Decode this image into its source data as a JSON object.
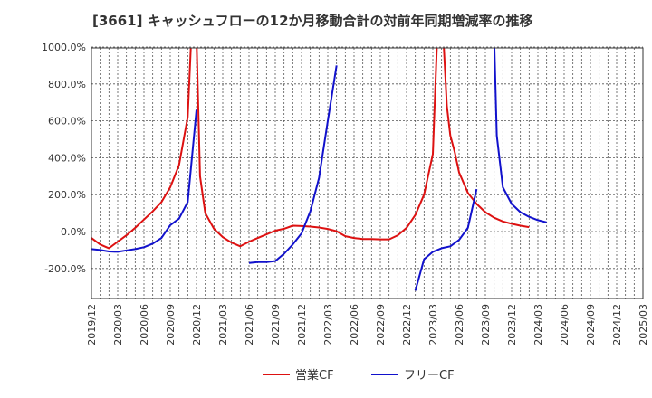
{
  "chart_data": {
    "type": "line",
    "title": "[3661]  キャッシュフローの12か月移動合計の対前年同期増減率の推移",
    "xlabel": "",
    "ylabel": "",
    "ylim": [
      -370,
      1000
    ],
    "y_ticks": [
      "1000.0%",
      "800.0%",
      "600.0%",
      "400.0%",
      "200.0%",
      "0.0%",
      "-200.0%"
    ],
    "y_tick_values": [
      1000,
      800,
      600,
      400,
      200,
      0,
      -200
    ],
    "x_tick_labels": [
      "2019/12",
      "2020/03",
      "2020/06",
      "2020/09",
      "2020/12",
      "2021/03",
      "2021/06",
      "2021/09",
      "2021/12",
      "2022/03",
      "2022/06",
      "2022/09",
      "2022/12",
      "2023/03",
      "2023/06",
      "2023/09",
      "2023/12",
      "2024/03",
      "2024/06",
      "2024/09",
      "2024/12",
      "2025/03"
    ],
    "grid": true,
    "legend_position": "bottom",
    "series": [
      {
        "name": "営業CF",
        "color": "#dd1111",
        "points": [
          [
            0,
            -35
          ],
          [
            1,
            -70
          ],
          [
            2,
            -90
          ],
          [
            3,
            -55
          ],
          [
            4,
            -20
          ],
          [
            5,
            20
          ],
          [
            6,
            65
          ],
          [
            7,
            110
          ],
          [
            8,
            160
          ],
          [
            9,
            240
          ],
          [
            10,
            360
          ],
          [
            11,
            620
          ],
          [
            11.4,
            1050
          ],
          [
            12.0,
            1050
          ],
          [
            12.4,
            300
          ],
          [
            13,
            100
          ],
          [
            14,
            15
          ],
          [
            15,
            -30
          ],
          [
            16,
            -60
          ],
          [
            17,
            -80
          ],
          [
            18,
            -55
          ],
          [
            19,
            -35
          ],
          [
            20,
            -15
          ],
          [
            21,
            5
          ],
          [
            22,
            15
          ],
          [
            23,
            32
          ],
          [
            24,
            30
          ],
          [
            25,
            27
          ],
          [
            26,
            22
          ],
          [
            27,
            14
          ],
          [
            28,
            2
          ],
          [
            29,
            -25
          ],
          [
            30,
            -35
          ],
          [
            31,
            -40
          ],
          [
            32,
            -40
          ],
          [
            33,
            -42
          ],
          [
            34,
            -42
          ],
          [
            35,
            -20
          ],
          [
            36,
            20
          ],
          [
            37,
            90
          ],
          [
            38,
            200
          ],
          [
            39,
            420
          ],
          [
            39.5,
            1050
          ],
          [
            40.2,
            1050
          ],
          [
            40.6,
            680
          ],
          [
            41,
            520
          ],
          [
            41.5,
            430
          ],
          [
            42,
            320
          ],
          [
            43,
            210
          ],
          [
            44,
            150
          ],
          [
            45,
            105
          ],
          [
            46,
            75
          ],
          [
            47,
            55
          ],
          [
            48,
            42
          ],
          [
            49,
            32
          ],
          [
            50,
            24
          ]
        ]
      },
      {
        "name": "フリーCF",
        "color": "#1111cc",
        "segments": [
          [
            [
              0,
              -95
            ],
            [
              1,
              -100
            ],
            [
              2,
              -108
            ],
            [
              3,
              -110
            ],
            [
              4,
              -102
            ],
            [
              5,
              -95
            ],
            [
              6,
              -85
            ],
            [
              7,
              -65
            ],
            [
              8,
              -35
            ],
            [
              9,
              35
            ],
            [
              10,
              70
            ],
            [
              11,
              160
            ],
            [
              12,
              660
            ]
          ],
          [
            [
              18,
              -170
            ],
            [
              19,
              -165
            ],
            [
              20,
              -165
            ],
            [
              21,
              -160
            ],
            [
              22,
              -120
            ],
            [
              23,
              -70
            ],
            [
              24,
              -10
            ],
            [
              25,
              110
            ],
            [
              26,
              290
            ],
            [
              27,
              600
            ],
            [
              28,
              900
            ]
          ],
          [
            [
              37,
              -320
            ],
            [
              38,
              -150
            ],
            [
              39,
              -110
            ],
            [
              40,
              -90
            ],
            [
              41,
              -80
            ],
            [
              42,
              -45
            ],
            [
              43,
              20
            ],
            [
              44,
              230
            ]
          ],
          [
            [
              46,
              1050
            ],
            [
              46.3,
              520
            ],
            [
              47,
              240
            ],
            [
              48,
              150
            ],
            [
              49,
              105
            ],
            [
              50,
              80
            ],
            [
              51,
              62
            ],
            [
              52,
              50
            ]
          ]
        ]
      }
    ]
  }
}
